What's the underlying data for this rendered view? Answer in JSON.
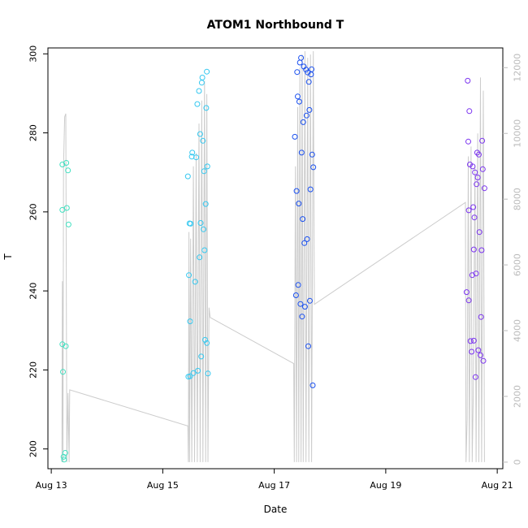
{
  "chart_data": {
    "type": "scatter",
    "title": "ATOM1 Northbound T",
    "xlabel": "Date",
    "ylabel": "T",
    "x_ticks": [
      {
        "label": "Aug 13",
        "value": 13
      },
      {
        "label": "Aug 15",
        "value": 15
      },
      {
        "label": "Aug 17",
        "value": 17
      },
      {
        "label": "Aug 19",
        "value": 19
      },
      {
        "label": "Aug 21",
        "value": 21
      }
    ],
    "xlim": [
      12.94,
      21.1
    ],
    "ylim": [
      195,
      301.5
    ],
    "y_ticks": [
      200,
      220,
      240,
      260,
      280,
      300
    ],
    "y2lim": [
      -200,
      12600
    ],
    "y2_ticks": [
      0,
      2000,
      4000,
      6000,
      8000,
      10000,
      12000
    ],
    "grid": false,
    "colors": {
      "points": [
        "#40e0c0",
        "#35c8f0",
        "#1a50f0",
        "#7b33f0"
      ],
      "line": "#cccccc",
      "axis": "#000000",
      "right_axis": "#bbbbbb"
    },
    "series": [
      {
        "points": [
          [
            13.2,
            272.0
          ],
          [
            13.2,
            260.5
          ],
          [
            13.2,
            226.5
          ],
          [
            13.21,
            219.5
          ],
          [
            13.22,
            198.0
          ],
          [
            13.23,
            197.3
          ],
          [
            13.25,
            199.0
          ],
          [
            13.27,
            272.4
          ],
          [
            13.28,
            261.0
          ],
          [
            13.3,
            270.5
          ],
          [
            13.31,
            256.8
          ],
          [
            13.26,
            226.0
          ]
        ]
      },
      {
        "points": [
          [
            15.45,
            269.0
          ],
          [
            15.47,
            244.0
          ],
          [
            15.48,
            257.1
          ],
          [
            15.49,
            232.3
          ],
          [
            15.5,
            257.0
          ],
          [
            15.52,
            274.0
          ],
          [
            15.53,
            275.0
          ],
          [
            15.46,
            218.3
          ],
          [
            15.49,
            218.4
          ],
          [
            15.55,
            219.2
          ],
          [
            15.58,
            242.3
          ],
          [
            15.6,
            273.8
          ],
          [
            15.62,
            287.3
          ],
          [
            15.63,
            219.8
          ],
          [
            15.65,
            290.6
          ],
          [
            15.66,
            248.5
          ],
          [
            15.67,
            279.7
          ],
          [
            15.68,
            257.2
          ],
          [
            15.69,
            223.4
          ],
          [
            15.7,
            292.7
          ],
          [
            15.71,
            294.0
          ],
          [
            15.72,
            278.0
          ],
          [
            15.73,
            255.6
          ],
          [
            15.74,
            270.3
          ],
          [
            15.75,
            250.3
          ],
          [
            15.76,
            227.6
          ],
          [
            15.77,
            262.0
          ],
          [
            15.78,
            286.3
          ],
          [
            15.79,
            295.5
          ],
          [
            15.8,
            271.5
          ],
          [
            15.81,
            219.1
          ],
          [
            15.79,
            226.8
          ]
        ]
      },
      {
        "points": [
          [
            17.37,
            279.0
          ],
          [
            17.39,
            238.9
          ],
          [
            17.4,
            265.3
          ],
          [
            17.41,
            295.4
          ],
          [
            17.42,
            289.2
          ],
          [
            17.43,
            241.5
          ],
          [
            17.44,
            262.1
          ],
          [
            17.45,
            287.9
          ],
          [
            17.46,
            297.8
          ],
          [
            17.47,
            236.7
          ],
          [
            17.48,
            299.0
          ],
          [
            17.49,
            275.0
          ],
          [
            17.5,
            233.5
          ],
          [
            17.51,
            258.2
          ],
          [
            17.52,
            282.7
          ],
          [
            17.53,
            296.8
          ],
          [
            17.54,
            252.1
          ],
          [
            17.55,
            236.0
          ],
          [
            17.57,
            296.0
          ],
          [
            17.58,
            284.4
          ],
          [
            17.59,
            253.1
          ],
          [
            17.6,
            295.3
          ],
          [
            17.61,
            226.0
          ],
          [
            17.62,
            292.9
          ],
          [
            17.63,
            285.8
          ],
          [
            17.64,
            237.5
          ],
          [
            17.65,
            265.7
          ],
          [
            17.66,
            294.8
          ],
          [
            17.67,
            296.1
          ],
          [
            17.68,
            274.5
          ],
          [
            17.69,
            216.1
          ],
          [
            17.7,
            271.3
          ]
        ]
      },
      {
        "points": [
          [
            20.45,
            239.7
          ],
          [
            20.47,
            293.2
          ],
          [
            20.48,
            277.8
          ],
          [
            20.49,
            260.4
          ],
          [
            20.49,
            237.6
          ],
          [
            20.5,
            285.5
          ],
          [
            20.51,
            272.0
          ],
          [
            20.52,
            227.3
          ],
          [
            20.54,
            224.6
          ],
          [
            20.55,
            244.0
          ],
          [
            20.56,
            271.5
          ],
          [
            20.57,
            261.2
          ],
          [
            20.58,
            250.5
          ],
          [
            20.58,
            227.4
          ],
          [
            20.59,
            258.6
          ],
          [
            20.6,
            270.0
          ],
          [
            20.61,
            218.2
          ],
          [
            20.62,
            244.4
          ],
          [
            20.63,
            267.0
          ],
          [
            20.64,
            275.0
          ],
          [
            20.65,
            268.7
          ],
          [
            20.66,
            225.0
          ],
          [
            20.67,
            274.5
          ],
          [
            20.68,
            254.9
          ],
          [
            20.7,
            223.7
          ],
          [
            20.71,
            233.4
          ],
          [
            20.72,
            250.3
          ],
          [
            20.73,
            278.0
          ],
          [
            20.74,
            270.8
          ],
          [
            20.75,
            222.3
          ],
          [
            20.77,
            266.0
          ]
        ]
      }
    ],
    "secondary_line": {
      "points": [
        [
          13.19,
          0
        ],
        [
          13.2,
          5500
        ],
        [
          13.21,
          0
        ],
        [
          13.22,
          9000
        ],
        [
          13.24,
          10500
        ],
        [
          13.26,
          10600
        ],
        [
          13.28,
          0
        ],
        [
          13.3,
          2100
        ],
        [
          13.32,
          0
        ],
        [
          13.33,
          2200
        ],
        [
          15.45,
          1100
        ],
        [
          15.46,
          0
        ],
        [
          15.47,
          7000
        ],
        [
          15.48,
          0
        ],
        [
          15.5,
          6800
        ],
        [
          15.52,
          0
        ],
        [
          15.55,
          9000
        ],
        [
          15.57,
          0
        ],
        [
          15.6,
          9400
        ],
        [
          15.62,
          0
        ],
        [
          15.65,
          10300
        ],
        [
          15.67,
          0
        ],
        [
          15.7,
          11000
        ],
        [
          15.72,
          0
        ],
        [
          15.75,
          11600
        ],
        [
          15.77,
          0
        ],
        [
          15.79,
          11200
        ],
        [
          15.81,
          0
        ],
        [
          15.83,
          4700
        ],
        [
          15.85,
          4400
        ],
        [
          17.35,
          3000
        ],
        [
          17.36,
          0
        ],
        [
          17.38,
          9000
        ],
        [
          17.4,
          0
        ],
        [
          17.42,
          10800
        ],
        [
          17.44,
          0
        ],
        [
          17.46,
          12000
        ],
        [
          17.48,
          0
        ],
        [
          17.5,
          12400
        ],
        [
          17.52,
          0
        ],
        [
          17.55,
          12500
        ],
        [
          17.57,
          0
        ],
        [
          17.6,
          12300
        ],
        [
          17.62,
          0
        ],
        [
          17.65,
          12400
        ],
        [
          17.67,
          0
        ],
        [
          17.7,
          12500
        ],
        [
          17.72,
          4800
        ],
        [
          20.43,
          7900
        ],
        [
          20.44,
          0
        ],
        [
          20.46,
          1300
        ],
        [
          20.48,
          9300
        ],
        [
          20.5,
          0
        ],
        [
          20.53,
          9600
        ],
        [
          20.55,
          0
        ],
        [
          20.57,
          2000
        ],
        [
          20.6,
          9000
        ],
        [
          20.62,
          0
        ],
        [
          20.65,
          10000
        ],
        [
          20.67,
          0
        ],
        [
          20.7,
          11700
        ],
        [
          20.72,
          0
        ],
        [
          20.75,
          11300
        ],
        [
          20.77,
          0
        ]
      ]
    }
  }
}
